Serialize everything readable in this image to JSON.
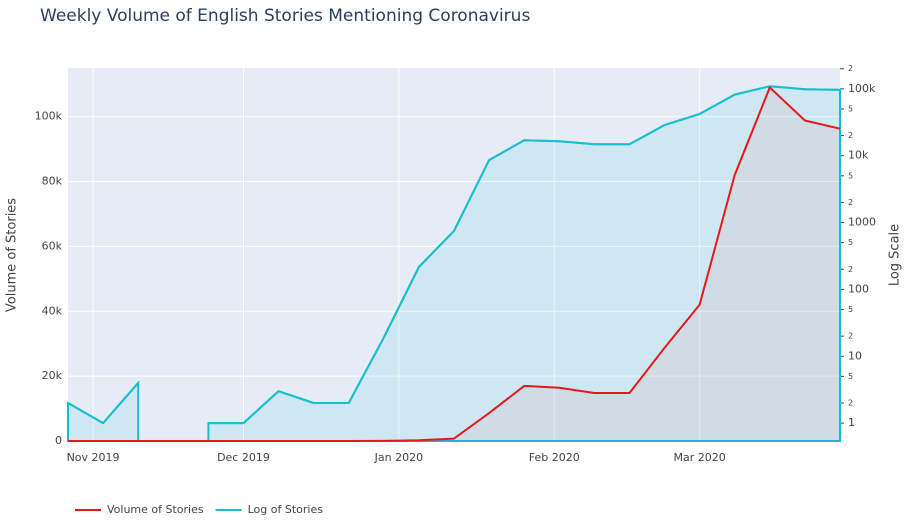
{
  "chart_data": {
    "type": "line",
    "title": "Weekly Volume of English Stories Mentioning Coronavirus",
    "ylabel": "Volume of Stories",
    "y2label": "Log Scale",
    "x": [
      "2019-10-27",
      "2019-11-03",
      "2019-11-10",
      "2019-11-17",
      "2019-11-24",
      "2019-12-01",
      "2019-12-08",
      "2019-12-15",
      "2019-12-22",
      "2019-12-29",
      "2020-01-05",
      "2020-01-12",
      "2020-01-19",
      "2020-01-26",
      "2020-02-02",
      "2020-02-09",
      "2020-02-16",
      "2020-02-23",
      "2020-03-01",
      "2020-03-08",
      "2020-03-15",
      "2020-03-22",
      "2020-03-29"
    ],
    "series": [
      {
        "name": "Volume of Stories",
        "color": "#e31a1c",
        "fill": true,
        "values": [
          2,
          1,
          4,
          0,
          1,
          1,
          3,
          2,
          2,
          19,
          216,
          750,
          8600,
          17000,
          16400,
          14800,
          14800,
          28700,
          42000,
          82000,
          109000,
          98800,
          96300
        ]
      },
      {
        "name": "Log of Stories",
        "color": "#17becf",
        "axis": "y2",
        "fill": true,
        "values": [
          2,
          1,
          4,
          null,
          1,
          1,
          3,
          2,
          2,
          19,
          216,
          750,
          8600,
          17000,
          16400,
          14800,
          14800,
          28700,
          42000,
          82000,
          109000,
          98800,
          96300
        ]
      }
    ],
    "xlim": [
      "2019-10-27",
      "2020-03-29"
    ],
    "xticks": [
      {
        "value": "2019-11-01",
        "label": "Nov 2019"
      },
      {
        "value": "2019-12-01",
        "label": "Dec 2019"
      },
      {
        "value": "2020-01-01",
        "label": "Jan 2020"
      },
      {
        "value": "2020-02-01",
        "label": "Feb 2020"
      },
      {
        "value": "2020-03-01",
        "label": "Mar 2020"
      }
    ],
    "ylim": [
      0,
      115000
    ],
    "yticks": [
      0,
      {
        "value": 20000,
        "label": "20k"
      },
      {
        "value": 40000,
        "label": "40k"
      },
      {
        "value": 60000,
        "label": "60k"
      },
      {
        "value": 80000,
        "label": "80k"
      },
      {
        "value": 100000,
        "label": "100k"
      }
    ],
    "y2lim": [
      0.54,
      205000
    ],
    "y2log": true,
    "y2ticks": [
      1,
      {
        "value": 2,
        "label": "2"
      },
      {
        "value": 5,
        "label": "5"
      },
      10,
      {
        "value": 20,
        "label": "2"
      },
      {
        "value": 50,
        "label": "5"
      },
      100,
      {
        "value": 200,
        "label": "2"
      },
      {
        "value": 500,
        "label": "5"
      },
      1000,
      {
        "value": 2000,
        "label": "2"
      },
      {
        "value": 5000,
        "label": "5"
      },
      {
        "value": 10000,
        "label": "10k"
      },
      {
        "value": 20000,
        "label": "2"
      },
      {
        "value": 50000,
        "label": "5"
      },
      {
        "value": 100000,
        "label": "100k"
      },
      {
        "value": 200000,
        "label": "2"
      }
    ],
    "grid": true,
    "legend": "bottom-left"
  }
}
